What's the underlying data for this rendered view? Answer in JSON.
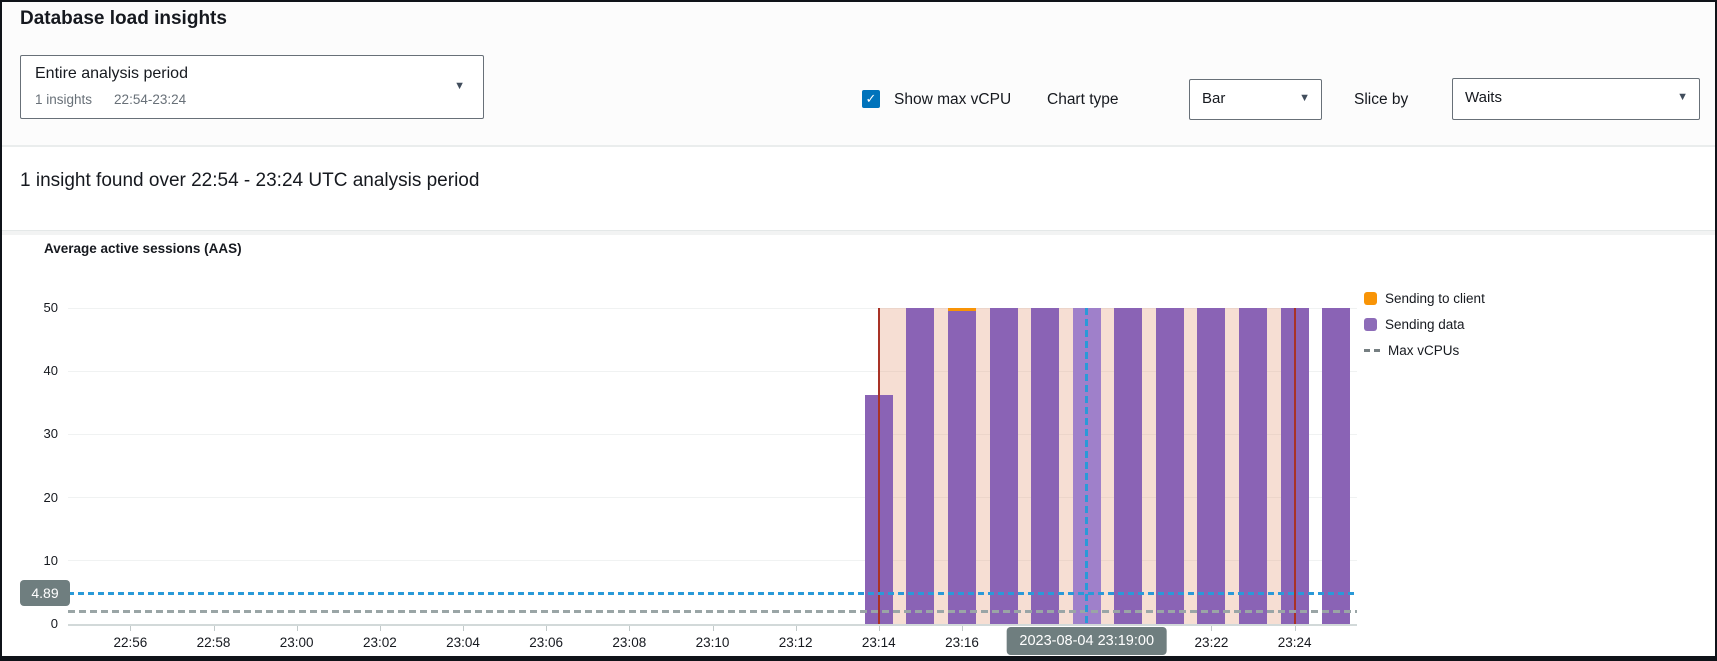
{
  "header": {
    "title": "Database load insights",
    "period_select": {
      "label": "Entire analysis period",
      "insights_count": "1 insights",
      "range": "22:54-23:24"
    },
    "show_max_vcpu": {
      "label": "Show max vCPU",
      "checked": true,
      "check_glyph": "✓"
    },
    "chart_type": {
      "label": "Chart type",
      "value": "Bar"
    },
    "slice_by": {
      "label": "Slice by",
      "value": "Waits"
    },
    "caret_glyph": "▼"
  },
  "insight_summary": "1 insight found over 22:54 - 23:24 UTC analysis period",
  "chart_data": {
    "type": "bar",
    "title": "Average active sessions (AAS)",
    "ylabel": "Average active sessions (AAS)",
    "ylim": [
      0,
      50
    ],
    "yticks": [
      0,
      10,
      20,
      30,
      40,
      50
    ],
    "x_domain": [
      "22:54:30",
      "23:25:30"
    ],
    "xticks": [
      "22:56",
      "22:58",
      "23:00",
      "23:02",
      "23:04",
      "23:06",
      "23:08",
      "23:10",
      "23:12",
      "23:14",
      "23:16",
      "23:22",
      "23:24"
    ],
    "grid": true,
    "legend_position": "top-right",
    "series_note": "values are AAS per 1-minute bar; bars taller than 50 are clipped at ylim max",
    "bars": [
      {
        "time": "23:14",
        "sending_data": 36.2,
        "sending_to_client": 0,
        "highlighted": false
      },
      {
        "time": "23:15",
        "sending_data": 50,
        "sending_to_client": 0,
        "highlighted": false
      },
      {
        "time": "23:16",
        "sending_data": 49.5,
        "sending_to_client": 0.5,
        "highlighted": false
      },
      {
        "time": "23:17",
        "sending_data": 50,
        "sending_to_client": 0,
        "highlighted": false
      },
      {
        "time": "23:18",
        "sending_data": 50,
        "sending_to_client": 0,
        "highlighted": false
      },
      {
        "time": "23:19",
        "sending_data": 50,
        "sending_to_client": 0,
        "highlighted": true
      },
      {
        "time": "23:20",
        "sending_data": 50,
        "sending_to_client": 0,
        "highlighted": false
      },
      {
        "time": "23:21",
        "sending_data": 50,
        "sending_to_client": 0,
        "highlighted": false
      },
      {
        "time": "23:22",
        "sending_data": 50,
        "sending_to_client": 0,
        "highlighted": false
      },
      {
        "time": "23:23",
        "sending_data": 50,
        "sending_to_client": 0,
        "highlighted": false
      },
      {
        "time": "23:24",
        "sending_data": 50,
        "sending_to_client": 0,
        "highlighted": false
      },
      {
        "time": "23:25",
        "sending_data": 50,
        "sending_to_client": 0,
        "highlighted": false
      }
    ],
    "insight_region": {
      "start": "23:14",
      "end": "23:24"
    },
    "max_vcpus": 2,
    "reference_value": 4.89,
    "reference_label": "4.89",
    "selected_time": "23:19",
    "selected_time_label": "2023-08-04 23:19:00",
    "legend": [
      {
        "label": "Sending to client",
        "color": "#f89406",
        "type": "square"
      },
      {
        "label": "Sending data",
        "color": "#8d6cb8",
        "type": "square"
      },
      {
        "label": "Max vCPUs",
        "color": "#767f82",
        "type": "dash"
      }
    ],
    "colors": {
      "bar_sending_data": "#8a63b5",
      "bar_sending_data_highlighted": "#9f80ca",
      "bar_sending_to_client": "#f89406",
      "insight_region_fill": "#f6ded3",
      "insight_boundary_line": "#a93226",
      "reference_line_blue": "#2a9ad8",
      "max_vcpus_line": "#9aa5a6",
      "badge_background": "#6f7e7f",
      "checkbox_blue": "#0073bb"
    }
  }
}
